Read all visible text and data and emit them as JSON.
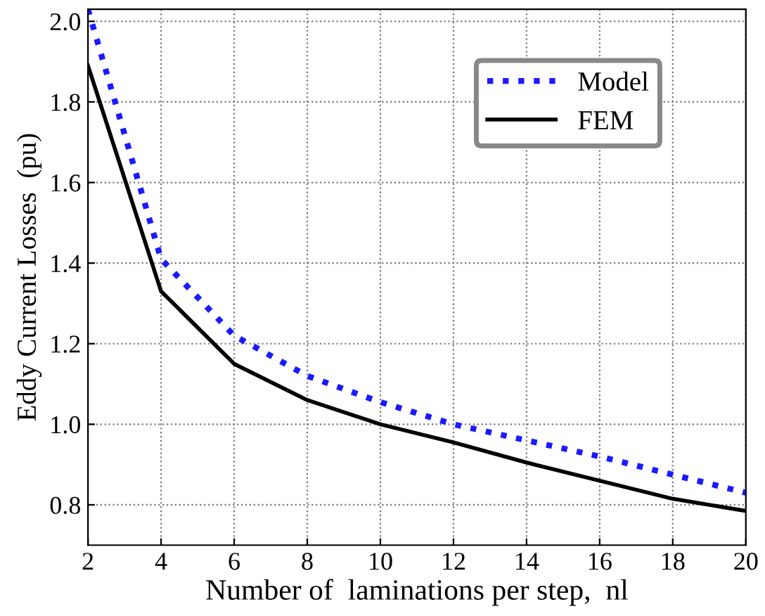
{
  "chart_data": {
    "type": "line",
    "xlabel": "Number of  laminations per step,  nl",
    "ylabel": "Eddy Current Losses  (pu)",
    "x": [
      2,
      4,
      6,
      8,
      10,
      12,
      14,
      16,
      18,
      20
    ],
    "series": [
      {
        "name": "Model",
        "color": "#1a1aff",
        "line_style": "dotted",
        "values": [
          2.03,
          1.41,
          1.22,
          1.12,
          1.055,
          1.0,
          0.96,
          0.92,
          0.875,
          0.83
        ]
      },
      {
        "name": "FEM",
        "color": "#000000",
        "line_style": "solid",
        "values": [
          1.89,
          1.33,
          1.15,
          1.06,
          1.0,
          0.955,
          0.905,
          0.86,
          0.815,
          0.785
        ]
      }
    ],
    "xlim": [
      2,
      20
    ],
    "xticks": [
      2,
      4,
      6,
      8,
      10,
      12,
      14,
      16,
      18,
      20
    ],
    "ylim": [
      0.7,
      2.03
    ],
    "yticks": [
      {
        "value": 0.8,
        "label": "0.8"
      },
      {
        "value": 1.0,
        "label": "1.0"
      },
      {
        "value": 1.2,
        "label": "1.2"
      },
      {
        "value": 1.4,
        "label": "1.4"
      },
      {
        "value": 1.6,
        "label": "1.6"
      },
      {
        "value": 1.8,
        "label": "1.8"
      },
      {
        "value": 2.0,
        "label": "2.0"
      }
    ],
    "grid": true,
    "legend": "top right",
    "marker": "none"
  }
}
